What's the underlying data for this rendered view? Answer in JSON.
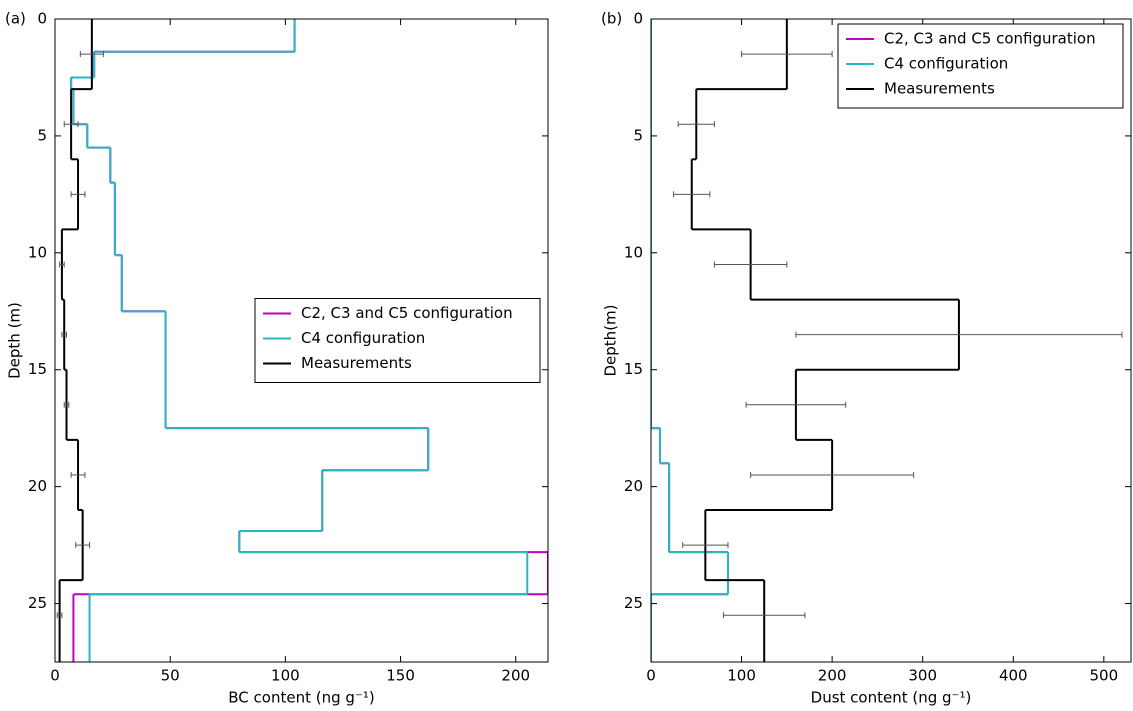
{
  "chart_data": [
    {
      "type": "step",
      "panel_label": "(a)",
      "xlabel": "BC content (ng g⁻¹)",
      "ylabel": "Depth (m)",
      "xlim": [
        0,
        214
      ],
      "xticks": [
        0,
        50,
        100,
        150,
        200
      ],
      "ylim": [
        0,
        27.5
      ],
      "yticks": [
        0,
        5,
        10,
        15,
        20,
        25
      ],
      "y_inverted": true,
      "legend": "center right",
      "series": [
        {
          "name": "C2, C3 and C5 configuration",
          "color": "#bf00bf",
          "bins": [
            0,
            1.4,
            2.5,
            3,
            4.5,
            5.5,
            7,
            10.1,
            12.5,
            17.5,
            19.3,
            21.9,
            22.8,
            24.6,
            27.5
          ],
          "values": [
            104,
            17,
            7,
            8,
            14,
            24,
            26,
            29,
            48,
            162,
            116,
            80,
            214,
            8
          ]
        },
        {
          "name": "C4 configuration",
          "color": "#2ab7c3",
          "bins": [
            0,
            1.4,
            2.5,
            3,
            4.5,
            5.5,
            7,
            10.1,
            12.5,
            17.5,
            19.3,
            21.9,
            22.8,
            24.6,
            27.5
          ],
          "values": [
            104,
            17,
            7,
            8,
            14,
            24,
            26,
            29,
            48,
            162,
            116,
            80,
            205,
            15
          ]
        },
        {
          "name": "Measurements",
          "color": "#000000",
          "bins": [
            0,
            3,
            6,
            9,
            12,
            15,
            18,
            21,
            24,
            27.5
          ],
          "values": [
            16,
            7,
            10,
            3,
            4,
            5,
            10,
            12,
            2
          ]
        }
      ],
      "errorbars": {
        "color": "#555555",
        "depths": [
          1.5,
          4.5,
          7.5,
          10.5,
          13.5,
          16.5,
          19.5,
          22.5,
          25.5
        ],
        "values": [
          16,
          7,
          10,
          3,
          4,
          5,
          10,
          12,
          2
        ],
        "errors": [
          5,
          3,
          3,
          1,
          1,
          1,
          3,
          3,
          1
        ]
      }
    },
    {
      "type": "step",
      "panel_label": "(b)",
      "xlabel": "Dust content (ng g⁻¹)",
      "ylabel": "Depth(m)",
      "xlim": [
        0,
        530
      ],
      "xticks": [
        0,
        100,
        200,
        300,
        400,
        500
      ],
      "ylim": [
        0,
        27.5
      ],
      "yticks": [
        0,
        5,
        10,
        15,
        20,
        25
      ],
      "y_inverted": true,
      "legend": "upper right",
      "series": [
        {
          "name": "C2, C3 and C5 configuration",
          "color": "#bf00bf",
          "bins": [
            0,
            17.5,
            19,
            22.8,
            24.6,
            27.5
          ],
          "values": [
            0,
            10,
            20,
            85,
            0
          ]
        },
        {
          "name": "C4 configuration",
          "color": "#2ab7c3",
          "bins": [
            0,
            17.5,
            19,
            22.8,
            24.6,
            27.5
          ],
          "values": [
            0,
            10,
            20,
            85,
            0
          ]
        },
        {
          "name": "Measurements",
          "color": "#000000",
          "bins": [
            0,
            3,
            6,
            9,
            12,
            15,
            18,
            21,
            24,
            27.5
          ],
          "values": [
            150,
            50,
            45,
            110,
            340,
            160,
            200,
            60,
            125
          ]
        }
      ],
      "errorbars": {
        "color": "#555555",
        "depths": [
          1.5,
          4.5,
          7.5,
          10.5,
          13.5,
          16.5,
          19.5,
          22.5,
          25.5
        ],
        "values": [
          150,
          50,
          45,
          110,
          340,
          160,
          200,
          60,
          125
        ],
        "errors": [
          50,
          20,
          20,
          40,
          180,
          55,
          90,
          25,
          45
        ]
      }
    }
  ]
}
